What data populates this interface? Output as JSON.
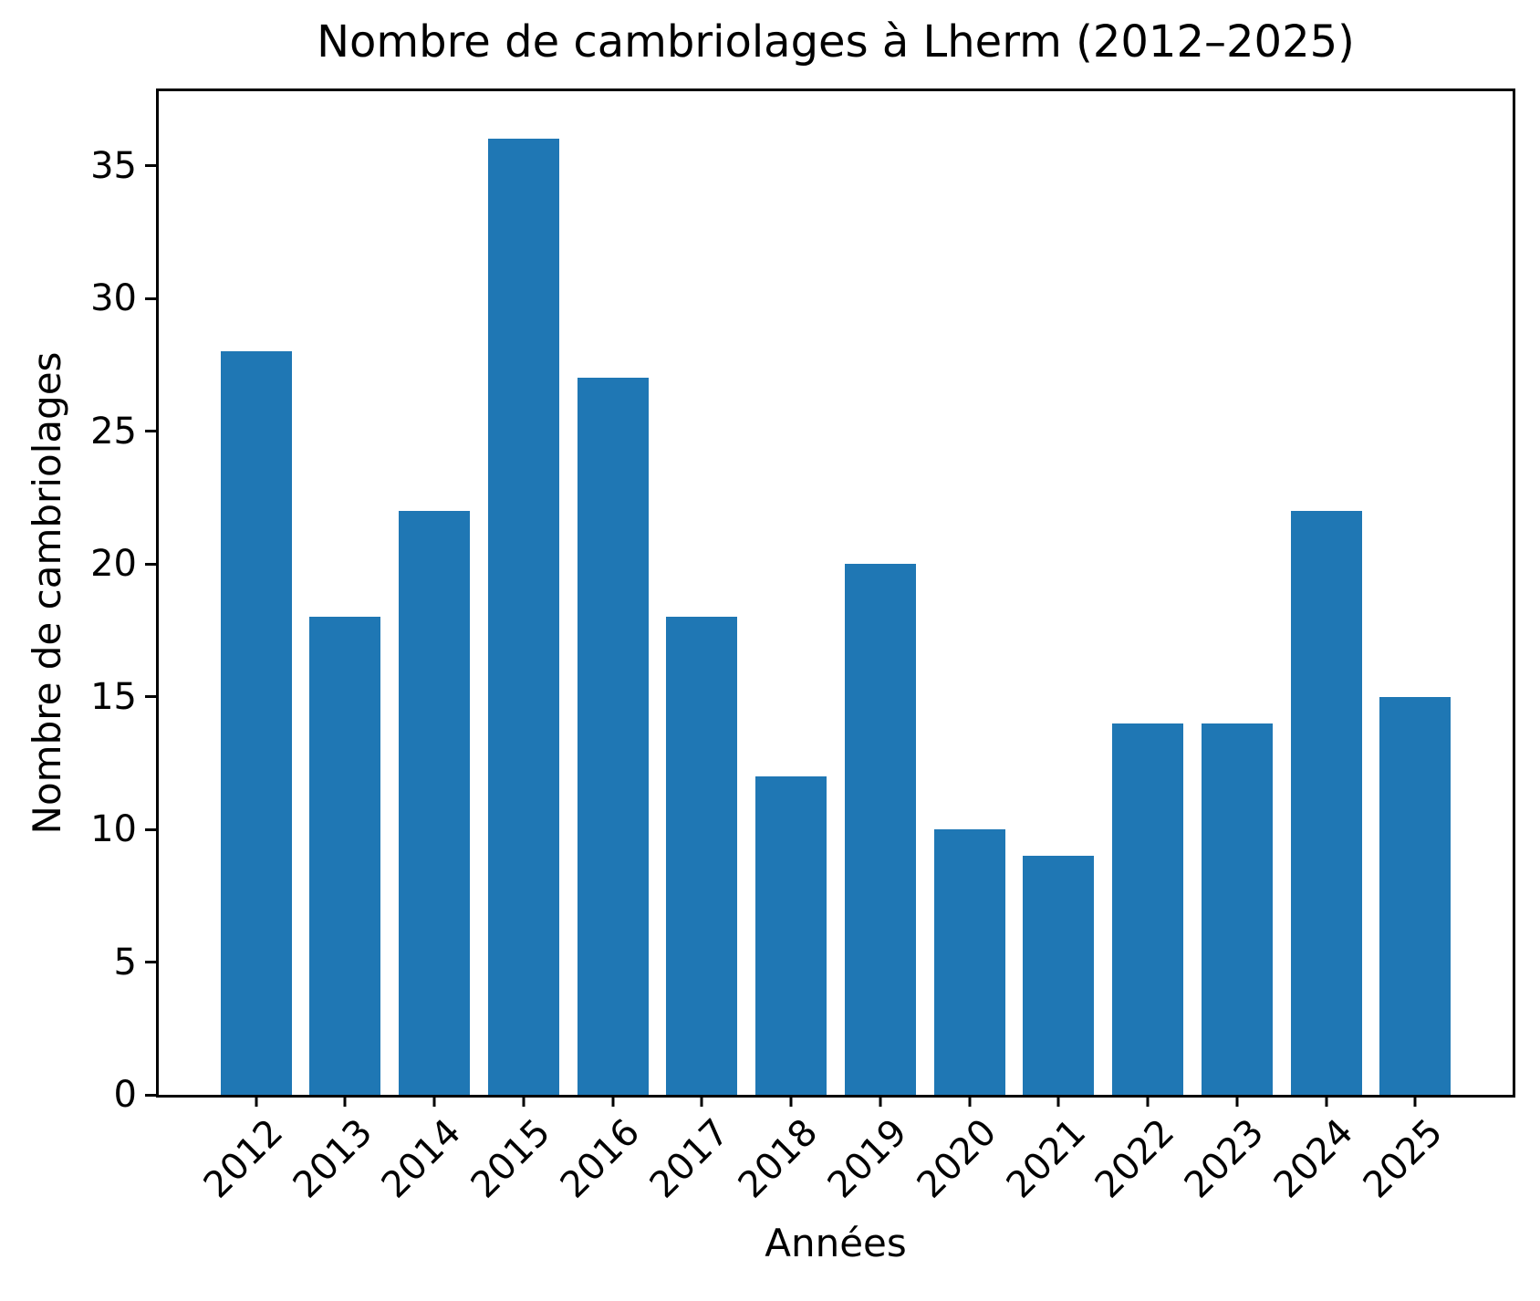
{
  "chart_data": {
    "type": "bar",
    "title": "Nombre de cambriolages à Lherm (2012–2025)",
    "xlabel": "Années",
    "ylabel": "Nombre de cambriolages",
    "categories": [
      "2012",
      "2013",
      "2014",
      "2015",
      "2016",
      "2017",
      "2018",
      "2019",
      "2020",
      "2021",
      "2022",
      "2023",
      "2024",
      "2025"
    ],
    "values": [
      28,
      18,
      22,
      36,
      27,
      18,
      12,
      20,
      10,
      9,
      14,
      14,
      22,
      15
    ],
    "yticks": [
      0,
      5,
      10,
      15,
      20,
      25,
      30,
      35
    ],
    "ylim": [
      0,
      37.8
    ],
    "bar_color": "#1f77b4",
    "axis_color": "#000000",
    "background_color": "#ffffff",
    "grid": false,
    "xtick_rotation_deg": 45
  }
}
